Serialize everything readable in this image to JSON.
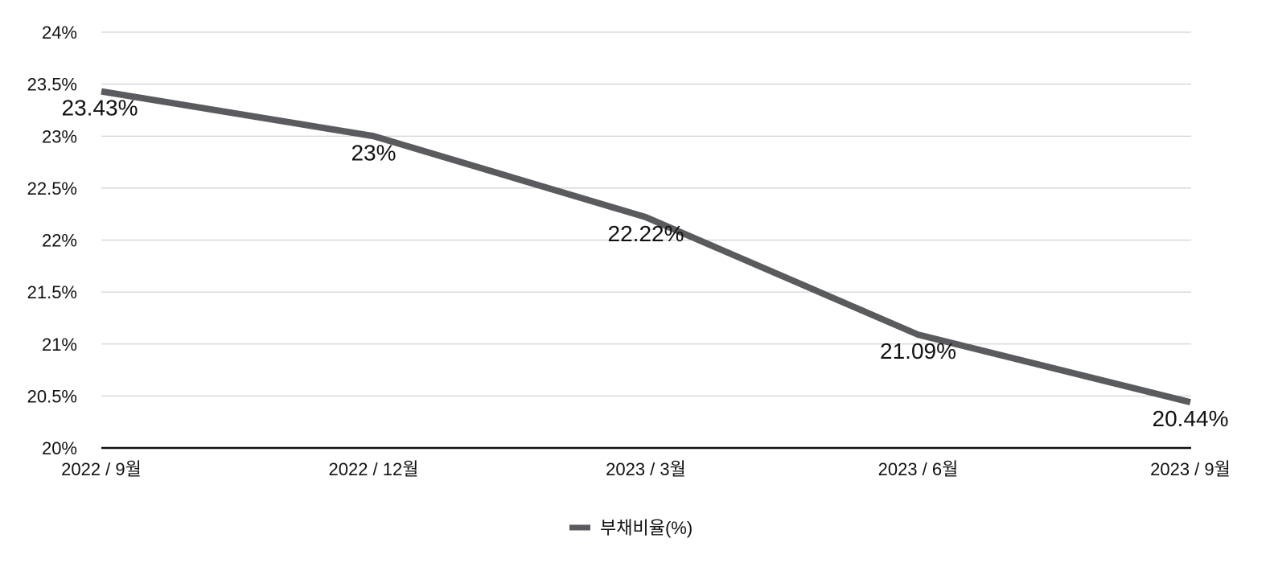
{
  "chart_data": {
    "type": "line",
    "categories": [
      "2022 / 9월",
      "2022 / 12월",
      "2023 / 3월",
      "2023 / 6월",
      "2023 / 9월"
    ],
    "series": [
      {
        "name": "부채비율(%)",
        "values": [
          23.43,
          23.0,
          22.22,
          21.09,
          20.44
        ],
        "labels": [
          "23.43%",
          "23%",
          "22.22%",
          "21.09%",
          "20.44%"
        ],
        "color": "#595b5f"
      }
    ],
    "ylim": [
      20,
      24
    ],
    "yticks": [
      20,
      20.5,
      21,
      21.5,
      22,
      22.5,
      23,
      23.5,
      24
    ],
    "ytick_labels": [
      "20%",
      "20.5%",
      "21%",
      "21.5%",
      "22%",
      "22.5%",
      "23%",
      "23.5%",
      "24%"
    ],
    "grid": true,
    "legend_position": "bottom",
    "title": "",
    "xlabel": "",
    "ylabel": ""
  }
}
